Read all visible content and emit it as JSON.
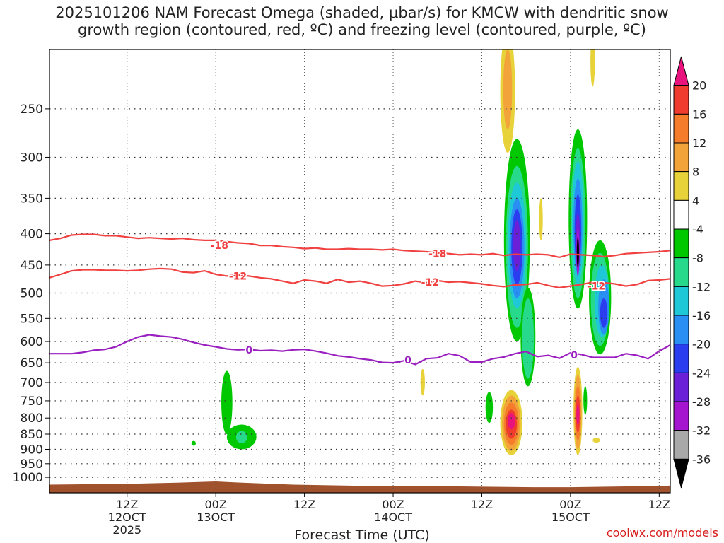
{
  "title": "2025101206 NAM Forecast Omega (shaded, μbar/s) for KMCW with dendritic snow\ngrowth region (contoured, red, ºC) and freezing level (contoured, purple, ºC)",
  "watermark": "coolwx.com/models",
  "chart_data": {
    "type": "heatmap",
    "title": "2025101206 NAM Forecast Omega (shaded, μbar/s) for KMCW with dendritic snow growth region (contoured, red, ºC) and freezing level (contoured, purple, ºC)",
    "xlabel": "Forecast Time (UTC)",
    "ylabel": "",
    "y_scale": "log",
    "y_inverted": true,
    "xlim_hours": [
      -21,
      147
    ],
    "ylim_hPa": [
      1060,
      200
    ],
    "y_ticks": [
      250,
      300,
      350,
      400,
      450,
      500,
      550,
      600,
      650,
      700,
      750,
      800,
      850,
      900,
      950,
      1000
    ],
    "x_ticks": [
      {
        "hour": 0,
        "label": "12Z",
        "sub": "12OCT",
        "sub2": "2025"
      },
      {
        "hour": 24,
        "label": "00Z",
        "sub": "13OCT",
        "sub2": ""
      },
      {
        "hour": 48,
        "label": "12Z",
        "sub": "",
        "sub2": ""
      },
      {
        "hour": 72,
        "label": "00Z",
        "sub": "14OCT",
        "sub2": ""
      },
      {
        "hour": 96,
        "label": "12Z",
        "sub": "",
        "sub2": ""
      },
      {
        "hour": 120,
        "label": "00Z",
        "sub": "15OCT",
        "sub2": ""
      },
      {
        "hour": 144,
        "label": "12Z",
        "sub": "",
        "sub2": ""
      }
    ],
    "grid": true,
    "colorbar": {
      "labels": [
        "20",
        "16",
        "12",
        "8",
        "4",
        "-4",
        "-8",
        "-12",
        "-16",
        "-20",
        "-24",
        "-28",
        "-32",
        "-36"
      ],
      "colors": [
        "#e8137d",
        "#f03c2e",
        "#f47c2a",
        "#f2a33a",
        "#e8d23a",
        "#ffffff",
        "#00c800",
        "#27d98a",
        "#1fc8d6",
        "#2a8ff2",
        "#2a3ef0",
        "#6b1fd6",
        "#a514cf",
        "#a9a9a9",
        "#000000"
      ]
    },
    "contours": [
      {
        "label": "-18",
        "color": "#f04040",
        "hours": [
          -21,
          -18,
          -15,
          -12,
          -9,
          -6,
          -3,
          0,
          3,
          6,
          9,
          12,
          15,
          18,
          21,
          24,
          27,
          30,
          33,
          36,
          39,
          42,
          45,
          48,
          51,
          54,
          57,
          60,
          63,
          66,
          69,
          72,
          75,
          78,
          81,
          84,
          87,
          90,
          93,
          96,
          99,
          102,
          105,
          108,
          111,
          114,
          117,
          120,
          123,
          126,
          129,
          132,
          135,
          138,
          141,
          144,
          147
        ],
        "p": [
          410,
          407,
          402,
          401,
          401,
          403,
          403,
          405,
          407,
          406,
          407,
          408,
          407,
          409,
          410,
          410,
          412,
          414,
          415,
          418,
          418,
          420,
          421,
          423,
          422,
          424,
          424,
          423,
          424,
          424,
          425,
          424,
          426,
          427,
          428,
          430,
          431,
          433,
          432,
          433,
          431,
          434,
          432,
          433,
          432,
          433,
          437,
          432,
          433,
          434,
          436,
          434,
          431,
          430,
          429,
          428,
          426
        ]
      },
      {
        "label": "-12",
        "color": "#f04040",
        "hours": [
          -21,
          -18,
          -15,
          -12,
          -9,
          -6,
          -3,
          0,
          3,
          6,
          9,
          12,
          15,
          18,
          21,
          24,
          27,
          30,
          33,
          36,
          39,
          42,
          45,
          48,
          51,
          54,
          57,
          60,
          63,
          66,
          69,
          72,
          75,
          78,
          81,
          84,
          87,
          90,
          93,
          96,
          99,
          102,
          105,
          108,
          111,
          114,
          117,
          120,
          123,
          126,
          129,
          132,
          135,
          138,
          141,
          144,
          147
        ],
        "p": [
          472,
          466,
          460,
          458,
          458,
          459,
          459,
          460,
          459,
          457,
          456,
          457,
          462,
          463,
          460,
          466,
          469,
          467,
          469,
          472,
          474,
          478,
          482,
          476,
          478,
          482,
          475,
          480,
          478,
          482,
          487,
          486,
          483,
          478,
          481,
          477,
          480,
          479,
          481,
          483,
          486,
          488,
          485,
          484,
          481,
          486,
          490,
          487,
          484,
          480,
          481,
          483,
          487,
          484,
          477,
          476,
          474
        ]
      },
      {
        "label": "0",
        "color": "#9a1fc0",
        "hours": [
          -21,
          -18,
          -15,
          -12,
          -9,
          -6,
          -3,
          0,
          3,
          6,
          9,
          12,
          15,
          18,
          21,
          24,
          27,
          30,
          33,
          36,
          39,
          42,
          45,
          48,
          51,
          54,
          57,
          60,
          63,
          66,
          69,
          72,
          75,
          78,
          81,
          84,
          87,
          90,
          93,
          96,
          99,
          102,
          105,
          108,
          111,
          114,
          117,
          120,
          123,
          126,
          129,
          132,
          135,
          138,
          141,
          144,
          147
        ],
        "p": [
          628,
          628,
          628,
          625,
          620,
          618,
          612,
          600,
          590,
          585,
          588,
          590,
          595,
          602,
          608,
          612,
          617,
          619,
          618,
          621,
          620,
          622,
          619,
          618,
          622,
          627,
          633,
          636,
          640,
          643,
          649,
          650,
          645,
          654,
          640,
          638,
          628,
          633,
          648,
          648,
          640,
          636,
          628,
          623,
          635,
          632,
          639,
          626,
          630,
          637,
          637,
          637,
          628,
          632,
          640,
          622,
          608
        ]
      }
    ],
    "labels": [
      {
        "text": "-18",
        "hour": 25,
        "p": 418
      },
      {
        "text": "-18",
        "hour": 84,
        "p": 431
      },
      {
        "text": "-12",
        "hour": 30,
        "p": 469
      },
      {
        "text": "-12",
        "hour": 82,
        "p": 480
      },
      {
        "text": "-12",
        "hour": 127,
        "p": 487
      },
      {
        "text": "0",
        "hour": 33,
        "p": 619
      },
      {
        "text": "0",
        "hour": 76,
        "p": 643
      },
      {
        "text": "0",
        "hour": 121,
        "p": 631
      }
    ],
    "terrain": {
      "color": "#a0522d",
      "hours": [
        -21,
        0,
        15,
        24,
        30,
        45,
        60,
        72,
        90,
        110,
        120,
        135,
        147
      ],
      "p": [
        1028,
        1025,
        1020,
        1016,
        1020,
        1028,
        1032,
        1035,
        1035,
        1038,
        1038,
        1035,
        1032
      ]
    },
    "omega_blobs": [
      {
        "v": 4,
        "hour": 103,
        "p": 240,
        "hw": 2.0,
        "hp": 55
      },
      {
        "v": 8,
        "hour": 103,
        "p": 235,
        "hw": 1.2,
        "hp": 35
      },
      {
        "v": 4,
        "hour": 126,
        "p": 210,
        "hw": 0.6,
        "hp": 20
      },
      {
        "v": -4,
        "hour": 105.5,
        "p": 440,
        "hw": 3.5,
        "hp": 160
      },
      {
        "v": -8,
        "hour": 105.5,
        "p": 440,
        "hw": 3.0,
        "hp": 130
      },
      {
        "v": -12,
        "hour": 105.5,
        "p": 430,
        "hw": 2.5,
        "hp": 100
      },
      {
        "v": -16,
        "hour": 105.5,
        "p": 430,
        "hw": 2.0,
        "hp": 80
      },
      {
        "v": -20,
        "hour": 105.5,
        "p": 425,
        "hw": 1.5,
        "hp": 60
      },
      {
        "v": -24,
        "hour": 105.5,
        "p": 420,
        "hw": 1.0,
        "hp": 40
      },
      {
        "v": -4,
        "hour": 108.5,
        "p": 600,
        "hw": 2.0,
        "hp": 110
      },
      {
        "v": -8,
        "hour": 108.5,
        "p": 600,
        "hw": 1.6,
        "hp": 90
      },
      {
        "v": -4,
        "hour": 122,
        "p": 400,
        "hw": 2.5,
        "hp": 130
      },
      {
        "v": -8,
        "hour": 122,
        "p": 400,
        "hw": 2.0,
        "hp": 110
      },
      {
        "v": -12,
        "hour": 122,
        "p": 395,
        "hw": 1.6,
        "hp": 90
      },
      {
        "v": -16,
        "hour": 122,
        "p": 395,
        "hw": 1.2,
        "hp": 70
      },
      {
        "v": -20,
        "hour": 122,
        "p": 400,
        "hw": 0.9,
        "hp": 55
      },
      {
        "v": -24,
        "hour": 122,
        "p": 415,
        "hw": 0.6,
        "hp": 45
      },
      {
        "v": -28,
        "hour": 122,
        "p": 430,
        "hw": 0.4,
        "hp": 40
      },
      {
        "v": -36,
        "hour": 122,
        "p": 430,
        "hw": 0.3,
        "hp": 25
      },
      {
        "v": -4,
        "hour": 128,
        "p": 520,
        "hw": 3.0,
        "hp": 110
      },
      {
        "v": -8,
        "hour": 128,
        "p": 520,
        "hw": 2.5,
        "hp": 90
      },
      {
        "v": -12,
        "hour": 128.5,
        "p": 520,
        "hw": 2.0,
        "hp": 70
      },
      {
        "v": -16,
        "hour": 129,
        "p": 530,
        "hw": 1.5,
        "hp": 55
      },
      {
        "v": -20,
        "hour": 129,
        "p": 540,
        "hw": 1.0,
        "hp": 30
      },
      {
        "v": -4,
        "hour": 27,
        "p": 760,
        "hw": 1.5,
        "hp": 90
      },
      {
        "v": -4,
        "hour": 31,
        "p": 860,
        "hw": 4.0,
        "hp": 40
      },
      {
        "v": -8,
        "hour": 31,
        "p": 860,
        "hw": 1.5,
        "hp": 20
      },
      {
        "v": -4,
        "hour": 98,
        "p": 770,
        "hw": 1.0,
        "hp": 45
      },
      {
        "v": -4,
        "hour": 18,
        "p": 880,
        "hw": 0.6,
        "hp": 8
      },
      {
        "v": 4,
        "hour": 80,
        "p": 700,
        "hw": 0.6,
        "hp": 35
      },
      {
        "v": 4,
        "hour": 104,
        "p": 820,
        "hw": 3.0,
        "hp": 100
      },
      {
        "v": 8,
        "hour": 104,
        "p": 820,
        "hw": 2.5,
        "hp": 85
      },
      {
        "v": 12,
        "hour": 104,
        "p": 820,
        "hw": 2.0,
        "hp": 65
      },
      {
        "v": 16,
        "hour": 104,
        "p": 820,
        "hw": 1.5,
        "hp": 45
      },
      {
        "v": 20,
        "hour": 104,
        "p": 810,
        "hw": 1.0,
        "hp": 25
      },
      {
        "v": 4,
        "hour": 122,
        "p": 790,
        "hw": 1.2,
        "hp": 130
      },
      {
        "v": 8,
        "hour": 122,
        "p": 790,
        "hw": 1.0,
        "hp": 110
      },
      {
        "v": 12,
        "hour": 122,
        "p": 790,
        "hw": 0.8,
        "hp": 80
      },
      {
        "v": 16,
        "hour": 122,
        "p": 790,
        "hw": 0.6,
        "hp": 55
      },
      {
        "v": 20,
        "hour": 122,
        "p": 790,
        "hw": 0.4,
        "hp": 30
      },
      {
        "v": -4,
        "hour": 124,
        "p": 750,
        "hw": 0.5,
        "hp": 40
      },
      {
        "v": 4,
        "hour": 127,
        "p": 870,
        "hw": 1.0,
        "hp": 8
      },
      {
        "v": 4,
        "hour": 112,
        "p": 380,
        "hw": 0.5,
        "hp": 30
      }
    ]
  }
}
